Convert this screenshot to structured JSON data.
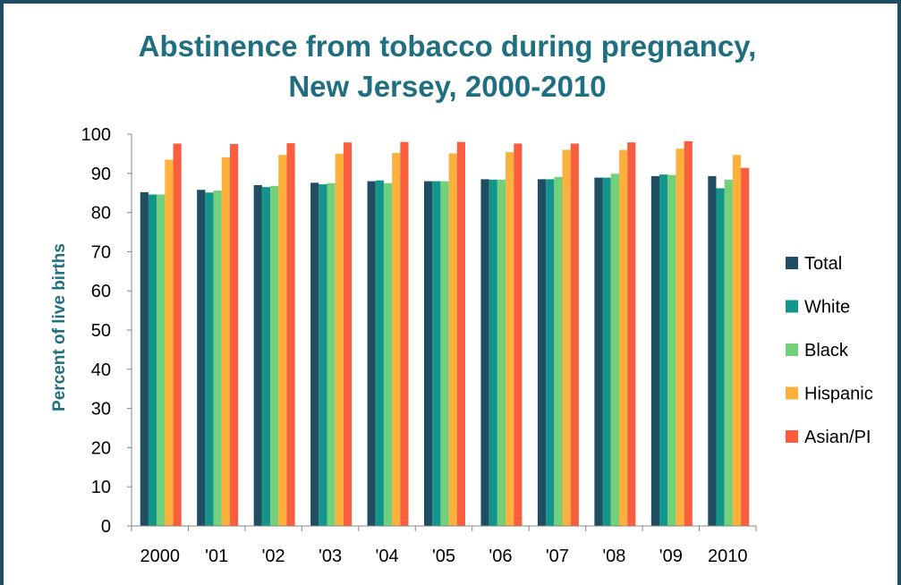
{
  "chart_data": {
    "type": "bar",
    "title": [
      "Abstinence from tobacco during pregnancy,",
      "New Jersey, 2000-2010"
    ],
    "ylabel": "Percent of live births",
    "xlabel": "",
    "ylim": [
      0,
      100
    ],
    "yticks": [
      0,
      10,
      20,
      30,
      40,
      50,
      60,
      70,
      80,
      90,
      100
    ],
    "categories": [
      "2000",
      "'01",
      "'02",
      "'03",
      "'04",
      "'05",
      "'06",
      "'07",
      "'08",
      "'09",
      "2010"
    ],
    "legend_position": "right",
    "series": [
      {
        "name": "Total",
        "color": "#1f4e63",
        "values": [
          85.2,
          85.8,
          87.0,
          87.6,
          88.0,
          88.0,
          88.5,
          88.5,
          88.9,
          89.3,
          89.3
        ]
      },
      {
        "name": "White",
        "color": "#14958b",
        "values": [
          84.6,
          85.1,
          86.5,
          87.2,
          88.2,
          88.0,
          88.4,
          88.5,
          88.9,
          89.7,
          86.2
        ]
      },
      {
        "name": "Black",
        "color": "#72d07a",
        "values": [
          84.6,
          85.6,
          86.8,
          87.5,
          87.5,
          88.0,
          88.4,
          89.1,
          89.9,
          89.6,
          88.4
        ]
      },
      {
        "name": "Hispanic",
        "color": "#fbb13c",
        "values": [
          93.5,
          94.1,
          94.7,
          95.0,
          95.2,
          95.1,
          95.4,
          96.0,
          96.0,
          96.3,
          94.7
        ]
      },
      {
        "name": "Asian/PI",
        "color": "#fb5e3f",
        "values": [
          97.6,
          97.5,
          97.7,
          97.9,
          98.0,
          98.0,
          97.6,
          97.6,
          97.9,
          98.2,
          91.4
        ]
      }
    ]
  }
}
